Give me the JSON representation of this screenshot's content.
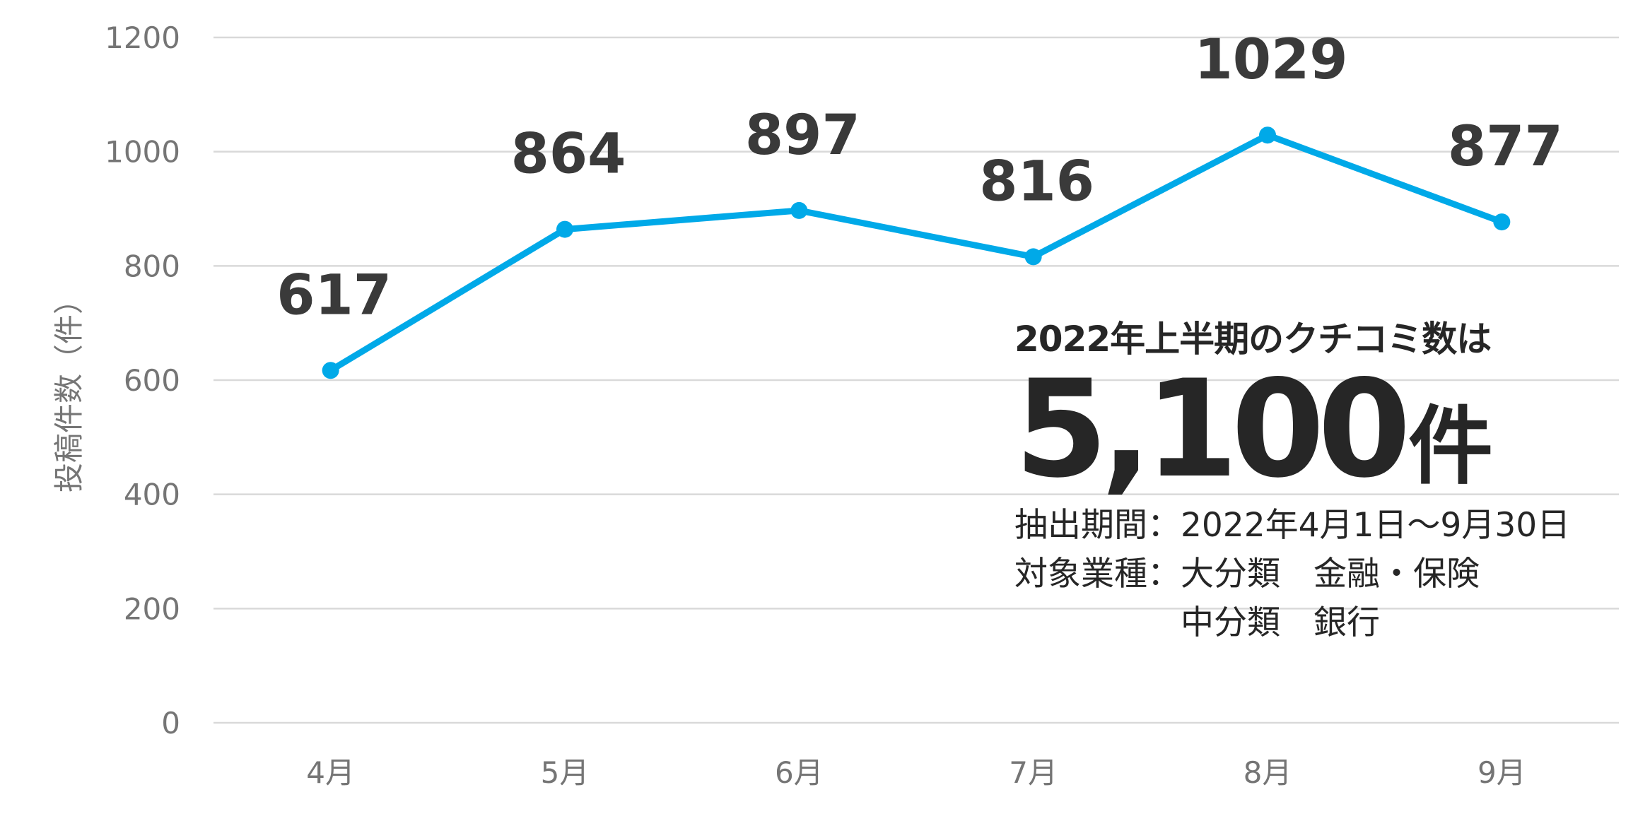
{
  "chart_data": {
    "type": "line",
    "categories": [
      "4月",
      "5月",
      "6月",
      "7月",
      "8月",
      "9月"
    ],
    "series": [
      {
        "values": [
          617,
          864,
          897,
          816,
          1029,
          877
        ],
        "color": "#00a9e8"
      }
    ],
    "data_labels": [
      "617",
      "864",
      "897",
      "816",
      "1029",
      "877"
    ],
    "ylabel": "投稿件数（件）",
    "ylim": [
      0,
      1200
    ],
    "yticks": [
      "0",
      "200",
      "400",
      "600",
      "800",
      "1000",
      "1200"
    ],
    "grid": true
  },
  "annotation": {
    "headline": "2022年上半期のクチコミ数は",
    "total_number": "5,100",
    "total_unit": "件",
    "period_label": "抽出期間：",
    "period_value": "2022年4月1日～9月30日",
    "industry_label": "対象業種：",
    "industry_major": "大分類　金融・保険",
    "industry_minor": "中分類　銀行"
  },
  "colors": {
    "line": "#00a9e8",
    "text_dark": "#262626",
    "axis_text": "#757575",
    "grid": "#d9d9d9"
  }
}
